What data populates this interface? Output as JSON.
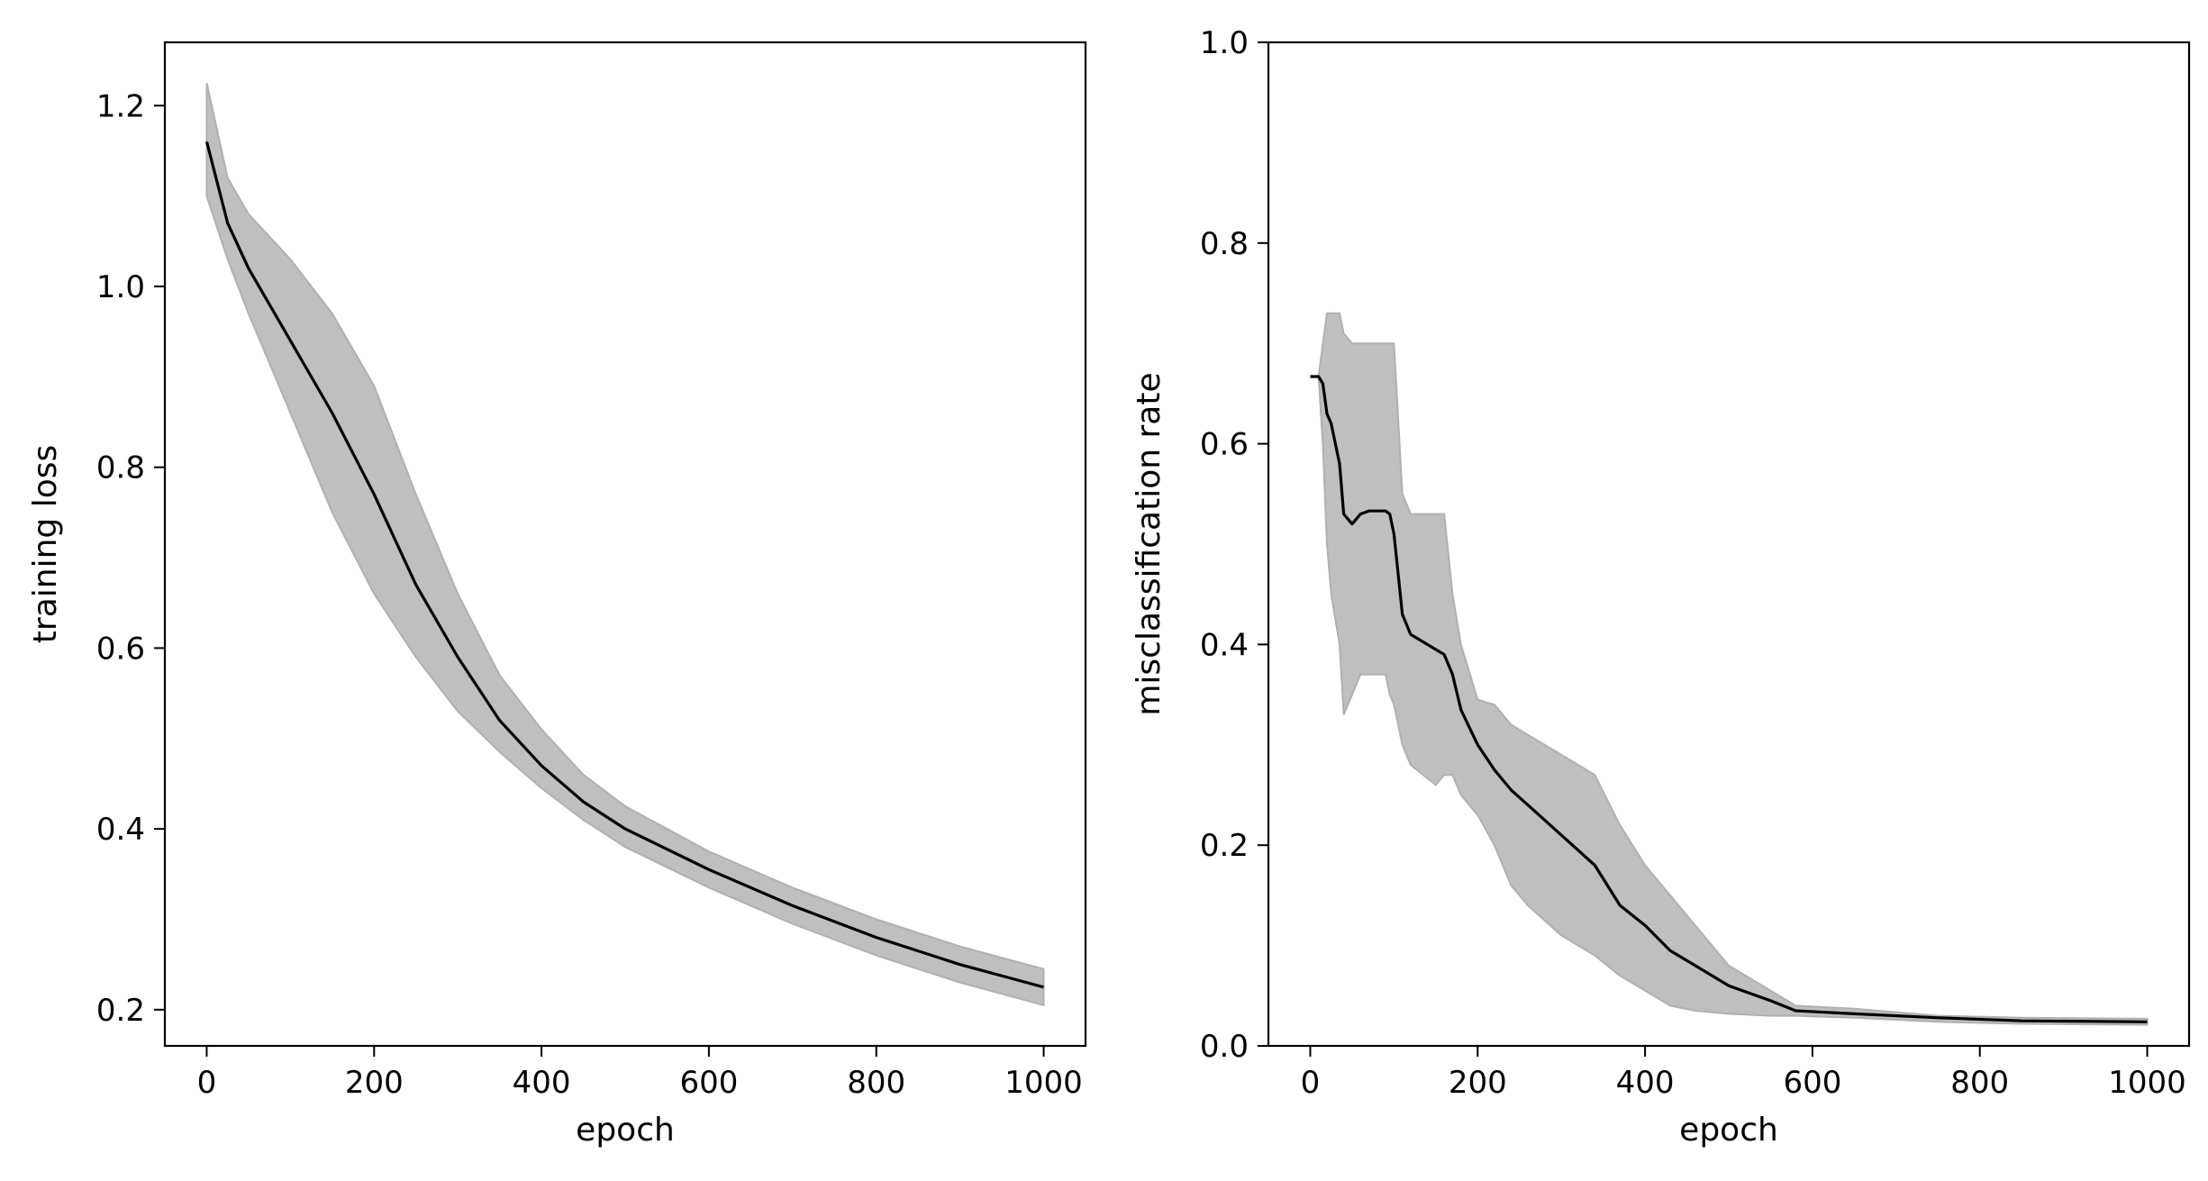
{
  "colors": {
    "mean_line": "#000000",
    "band_fill": "#bfbfbf",
    "band_edge": "#b0b0b0",
    "axes": "#000000",
    "background": "#ffffff"
  },
  "chart_data": [
    {
      "type": "line",
      "xlabel": "epoch",
      "ylabel": "training loss",
      "xlim": [
        -50,
        1050
      ],
      "ylim": [
        0.16,
        1.27
      ],
      "xticks": [
        0,
        200,
        400,
        600,
        800,
        1000
      ],
      "xtick_labels": [
        "0",
        "200",
        "400",
        "600",
        "800",
        "1000"
      ],
      "yticks": [
        0.2,
        0.4,
        0.6,
        0.8,
        1.0,
        1.2
      ],
      "ytick_labels": [
        "0.2",
        "0.4",
        "0.6",
        "0.8",
        "1.0",
        "1.2"
      ],
      "grid": false,
      "x": [
        0,
        25,
        50,
        100,
        150,
        200,
        250,
        300,
        350,
        400,
        450,
        500,
        600,
        700,
        800,
        900,
        1000
      ],
      "mean": [
        1.16,
        1.07,
        1.02,
        0.94,
        0.86,
        0.77,
        0.67,
        0.59,
        0.52,
        0.47,
        0.43,
        0.4,
        0.355,
        0.315,
        0.28,
        0.25,
        0.225
      ],
      "upper": [
        1.225,
        1.12,
        1.08,
        1.03,
        0.97,
        0.89,
        0.77,
        0.66,
        0.57,
        0.51,
        0.46,
        0.425,
        0.375,
        0.335,
        0.3,
        0.27,
        0.245
      ],
      "lower": [
        1.1,
        1.03,
        0.97,
        0.86,
        0.75,
        0.66,
        0.59,
        0.53,
        0.485,
        0.445,
        0.41,
        0.38,
        0.335,
        0.295,
        0.26,
        0.23,
        0.205
      ]
    },
    {
      "type": "line",
      "xlabel": "epoch",
      "ylabel": "misclassification rate",
      "xlim": [
        -50,
        1050
      ],
      "ylim": [
        0.0,
        1.0
      ],
      "xticks": [
        0,
        200,
        400,
        600,
        800,
        1000
      ],
      "xtick_labels": [
        "0",
        "200",
        "400",
        "600",
        "800",
        "1000"
      ],
      "yticks": [
        0.0,
        0.2,
        0.4,
        0.6,
        0.8,
        1.0
      ],
      "ytick_labels": [
        "0.0",
        "0.2",
        "0.4",
        "0.6",
        "0.8",
        "1.0"
      ],
      "grid": false,
      "x": [
        0,
        10,
        15,
        20,
        25,
        35,
        40,
        50,
        60,
        70,
        90,
        95,
        100,
        110,
        120,
        150,
        160,
        170,
        180,
        200,
        220,
        240,
        260,
        300,
        340,
        370,
        400,
        430,
        460,
        500,
        550,
        580,
        650,
        750,
        850,
        1000
      ],
      "mean": [
        0.667,
        0.667,
        0.66,
        0.63,
        0.62,
        0.58,
        0.53,
        0.52,
        0.53,
        0.533,
        0.533,
        0.53,
        0.51,
        0.43,
        0.41,
        0.395,
        0.39,
        0.37,
        0.335,
        0.3,
        0.275,
        0.255,
        0.24,
        0.21,
        0.18,
        0.14,
        0.12,
        0.095,
        0.08,
        0.06,
        0.045,
        0.035,
        0.032,
        0.028,
        0.025,
        0.024
      ],
      "upper": [
        0.667,
        0.667,
        0.7,
        0.73,
        0.73,
        0.73,
        0.71,
        0.7,
        0.7,
        0.7,
        0.7,
        0.7,
        0.7,
        0.55,
        0.53,
        0.53,
        0.53,
        0.45,
        0.4,
        0.345,
        0.34,
        0.32,
        0.31,
        0.29,
        0.27,
        0.22,
        0.18,
        0.15,
        0.12,
        0.08,
        0.055,
        0.04,
        0.037,
        0.03,
        0.028,
        0.027
      ],
      "lower": [
        0.667,
        0.667,
        0.6,
        0.5,
        0.45,
        0.4,
        0.33,
        0.35,
        0.37,
        0.37,
        0.37,
        0.35,
        0.34,
        0.3,
        0.28,
        0.26,
        0.27,
        0.27,
        0.25,
        0.23,
        0.2,
        0.16,
        0.14,
        0.11,
        0.09,
        0.07,
        0.055,
        0.04,
        0.035,
        0.032,
        0.03,
        0.03,
        0.028,
        0.024,
        0.022,
        0.021
      ]
    }
  ]
}
